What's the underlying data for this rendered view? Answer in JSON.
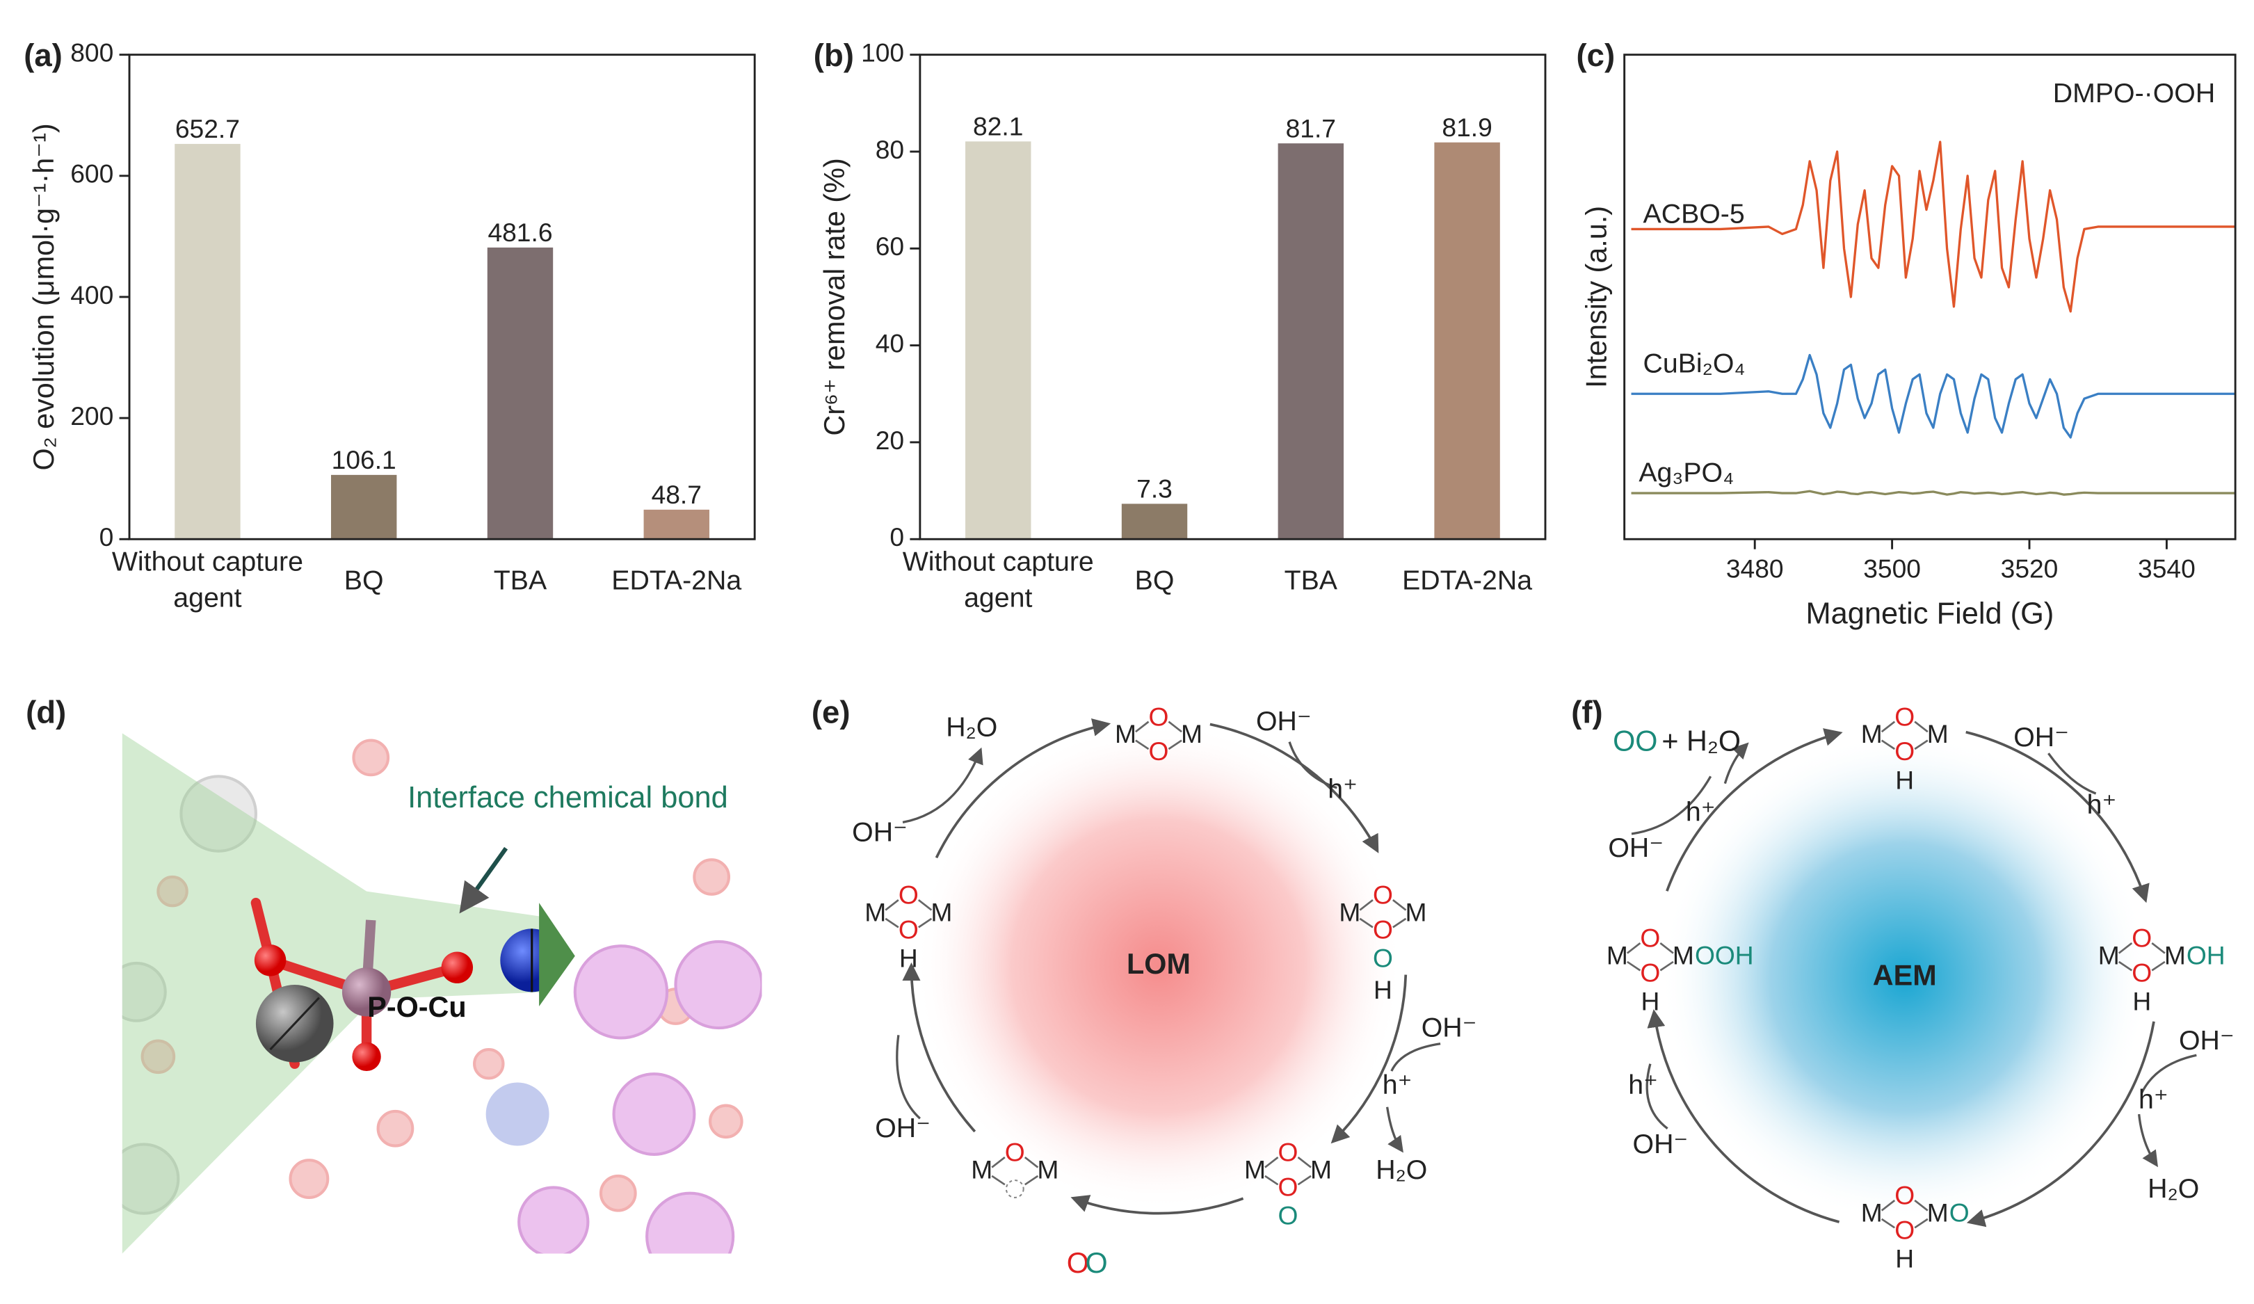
{
  "chart_data": [
    {
      "type": "bar",
      "panel_label": "(a)",
      "ylabel": "O₂ evolution (μmol·g⁻¹·h⁻¹)",
      "categories": [
        "Without capture agent",
        "BQ",
        "TBA",
        "EDTA-2Na"
      ],
      "values": [
        652.7,
        106.1,
        481.6,
        48.7
      ],
      "colors": [
        "#d7d4c4",
        "#8c7b67",
        "#7d6e6f",
        "#b58f7b"
      ],
      "ylim": [
        0,
        800
      ],
      "yticks": [
        0,
        200,
        400,
        600,
        800
      ]
    },
    {
      "type": "bar",
      "panel_label": "(b)",
      "ylabel": "Cr⁶⁺ removal rate (%)",
      "categories": [
        "Without capture agent",
        "BQ",
        "TBA",
        "EDTA-2Na"
      ],
      "values": [
        82.1,
        7.3,
        81.7,
        81.9
      ],
      "colors": [
        "#d7d4c4",
        "#8c7b67",
        "#7d6e6f",
        "#ae8a74"
      ],
      "ylim": [
        0,
        100
      ],
      "yticks": [
        0,
        20,
        40,
        60,
        80,
        100
      ]
    },
    {
      "type": "line",
      "panel_label": "(c)",
      "annotation": "DMPO-·OOH",
      "xlabel": "Magnetic Field (G)",
      "ylabel": "Intensity (a.u.)",
      "x": [
        3462,
        3475,
        3482,
        3484,
        3486,
        3487,
        3488,
        3489,
        3490,
        3491,
        3492,
        3493,
        3494,
        3495,
        3496,
        3497,
        3498,
        3499,
        3500,
        3501,
        3502,
        3503,
        3504,
        3505,
        3506,
        3507,
        3508,
        3509,
        3510,
        3511,
        3512,
        3513,
        3514,
        3515,
        3516,
        3517,
        3518,
        3519,
        3520,
        3521,
        3522,
        3523,
        3524,
        3525,
        3526,
        3527,
        3528,
        3530,
        3540,
        3550
      ],
      "series": [
        {
          "name": "ACBO-5",
          "color": "#e0562a",
          "values": [
            6.4,
            6.4,
            6.45,
            6.3,
            6.4,
            6.9,
            7.8,
            7.2,
            5.6,
            7.4,
            8.0,
            6.0,
            5.0,
            6.5,
            7.2,
            5.8,
            5.6,
            6.9,
            7.7,
            7.5,
            5.4,
            6.2,
            7.6,
            6.8,
            7.4,
            8.2,
            6.0,
            4.8,
            6.4,
            7.5,
            5.8,
            5.4,
            7.0,
            7.6,
            5.6,
            5.2,
            6.6,
            7.8,
            6.2,
            5.4,
            6.2,
            7.2,
            6.6,
            5.2,
            4.7,
            5.8,
            6.4,
            6.45,
            6.45,
            6.45
          ]
        },
        {
          "name": "CuBi₂O₄",
          "color": "#3a7fc4",
          "values": [
            3.0,
            3.0,
            3.05,
            3.0,
            3.0,
            3.3,
            3.8,
            3.4,
            2.6,
            2.3,
            2.8,
            3.5,
            3.6,
            2.9,
            2.5,
            2.8,
            3.4,
            3.5,
            2.7,
            2.2,
            2.8,
            3.3,
            3.4,
            2.6,
            2.3,
            3.0,
            3.4,
            3.3,
            2.6,
            2.2,
            2.9,
            3.4,
            3.3,
            2.5,
            2.2,
            2.8,
            3.3,
            3.4,
            2.8,
            2.5,
            2.9,
            3.3,
            3.0,
            2.3,
            2.1,
            2.6,
            2.9,
            3.0,
            3.0,
            3.0
          ]
        },
        {
          "name": "Ag₃PO₄",
          "color": "#8a8a5c",
          "values": [
            0.95,
            0.95,
            0.97,
            0.95,
            0.95,
            0.97,
            0.99,
            0.96,
            0.93,
            0.95,
            0.98,
            0.97,
            0.94,
            0.93,
            0.96,
            0.97,
            0.95,
            0.93,
            0.95,
            0.97,
            0.96,
            0.94,
            0.95,
            0.97,
            0.98,
            0.95,
            0.92,
            0.94,
            0.97,
            0.96,
            0.94,
            0.95,
            0.96,
            0.95,
            0.93,
            0.94,
            0.96,
            0.97,
            0.95,
            0.93,
            0.94,
            0.96,
            0.95,
            0.92,
            0.93,
            0.95,
            0.96,
            0.95,
            0.95,
            0.95
          ]
        }
      ],
      "xlim": [
        3461,
        3550
      ],
      "xticks": [
        3480,
        3500,
        3520,
        3540
      ],
      "ylim": [
        0,
        10
      ]
    }
  ],
  "panel_d": {
    "label": "(d)",
    "annotation": "Interface chemical bond",
    "bond": "P-O-Cu"
  },
  "panel_e": {
    "label": "(e)",
    "center": "LOM",
    "species": [
      {
        "left": "M",
        "top": "O",
        "bottom": "O",
        "right": "M"
      },
      {
        "left": "M",
        "top": "O",
        "bottom": "O",
        "right": "M",
        "below": [
          "O",
          "H"
        ]
      },
      {
        "left": "M",
        "top": "O",
        "bottom": "O",
        "right": "M",
        "below": [
          "O"
        ]
      },
      {
        "left": "M",
        "top": "O",
        "right": "M"
      },
      {
        "left": "M",
        "top": "O",
        "bottom": "O",
        "right": "M",
        "below": [
          "H"
        ]
      }
    ],
    "texts": [
      "H₂O",
      "OH⁻",
      "h⁺",
      "OH⁻",
      "h⁺",
      "H₂O",
      "OH⁻",
      "OH⁻"
    ],
    "product": [
      "O",
      "O"
    ]
  },
  "panel_f": {
    "label": "(f)",
    "center": "AEM",
    "species": [
      {
        "left": "M",
        "top": "O",
        "bottom": "O",
        "right": "M",
        "below": [
          "H"
        ]
      },
      {
        "left": "M",
        "top": "O",
        "bottom": "O",
        "right": "M",
        "suffix": "OH",
        "below": [
          "H"
        ]
      },
      {
        "left": "M",
        "top": "O",
        "bottom": "O",
        "right": "M",
        "suffix": "O",
        "below": [
          "H"
        ]
      },
      {
        "left": "M",
        "top": "O",
        "bottom": "O",
        "right": "M",
        "suffix": "OOH",
        "below": [
          "H"
        ]
      }
    ],
    "texts": [
      "h⁺",
      "OH⁻",
      "OH⁻",
      "h⁺",
      "OH⁻",
      "h⁺",
      "H₂O",
      "h⁺",
      "OH⁻"
    ],
    "product": [
      "OO",
      "+ H₂O"
    ]
  }
}
